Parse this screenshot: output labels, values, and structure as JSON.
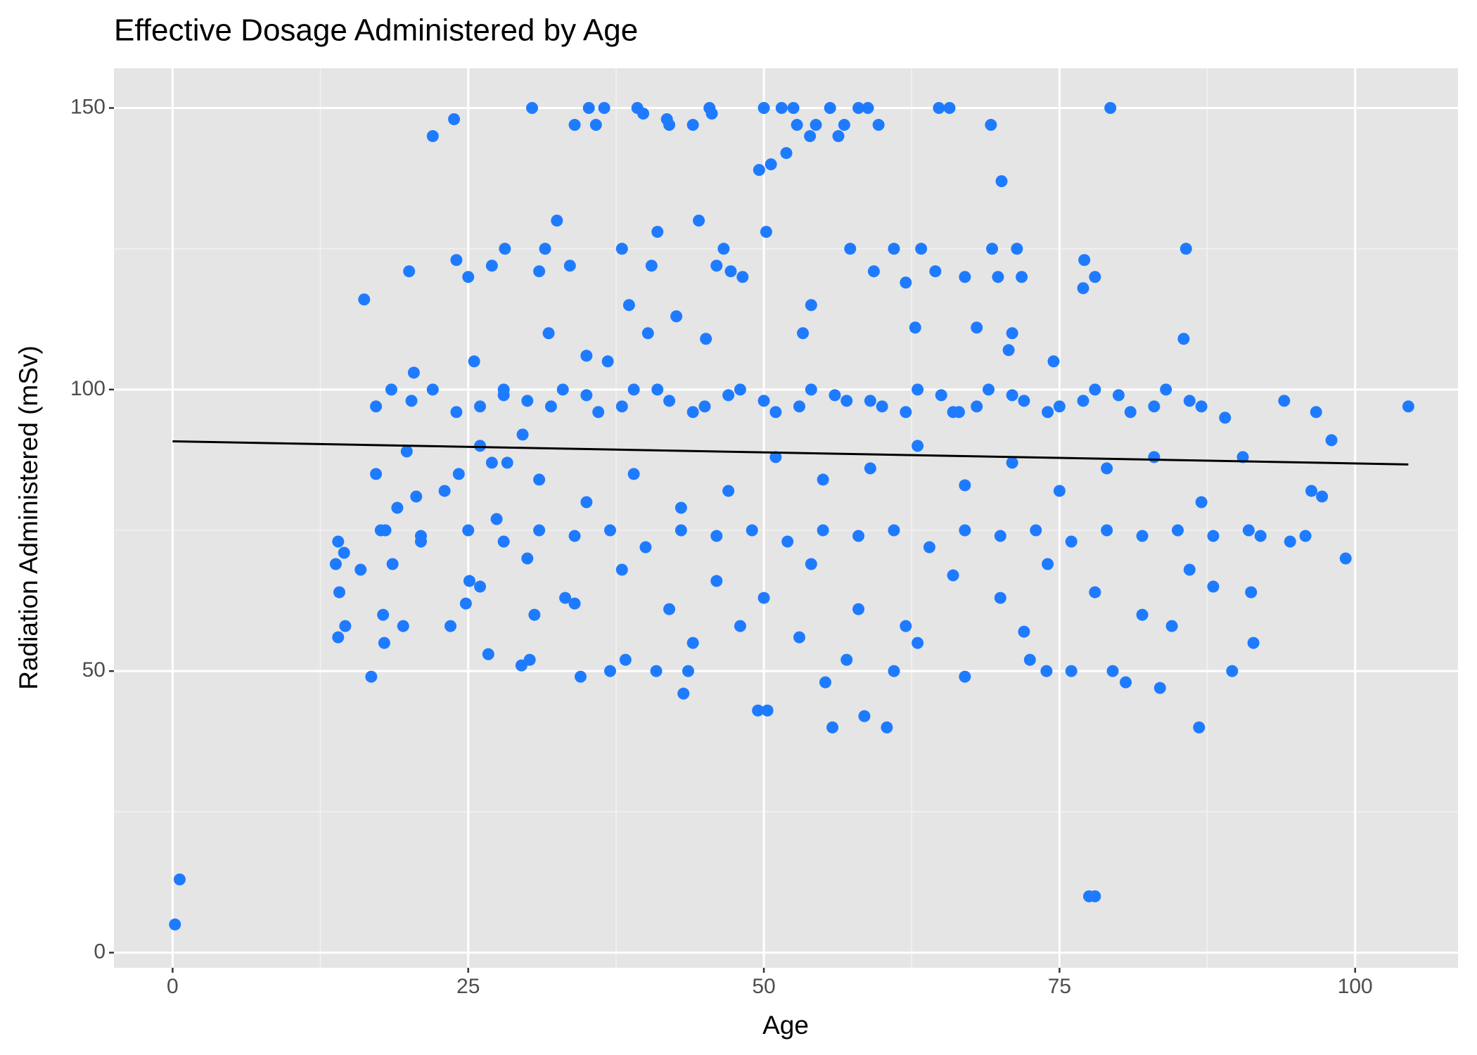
{
  "chart_data": {
    "type": "scatter",
    "title": "Effective Dosage Administered by Age",
    "x_label": "Age",
    "y_label": "Radiation Administered (mSv)",
    "xlim": [
      -4.96,
      108.7
    ],
    "ylim": [
      -2.69,
      157.06
    ],
    "xticks": [
      0,
      25,
      50,
      75,
      100
    ],
    "yticks": [
      0,
      50,
      100,
      150
    ],
    "minor_xticks": [
      12.5,
      37.5,
      62.5,
      87.5
    ],
    "minor_yticks": [
      25,
      75,
      125
    ],
    "grid": true,
    "series": [
      {
        "color": "#1e7bff",
        "x": [
          0.2,
          0.6,
          13.8,
          14,
          14.1,
          14,
          14.6,
          14.5,
          15.9,
          16.2,
          16.8,
          17.2,
          17.2,
          17.6,
          17.8,
          17.9,
          18.5,
          18.6,
          19,
          19.5,
          19.8,
          20,
          20.2,
          20.4,
          20.6,
          21,
          22,
          23.5,
          23.8,
          24,
          24.2,
          24.8,
          25,
          25.1,
          25.5,
          26,
          26.7,
          27,
          27.4,
          28,
          28.1,
          28.3,
          29.5,
          29.6,
          30.2,
          30.4,
          30.6,
          31,
          31.5,
          31.8,
          32.5,
          33.2,
          33.6,
          34,
          34.5,
          35,
          35.2,
          35.8,
          36.5,
          36.8,
          37,
          38,
          38.3,
          38.6,
          39.3,
          39.8,
          40.2,
          40.5,
          40.9,
          41,
          41.8,
          42,
          42.6,
          43.2,
          43.6,
          44,
          44.5,
          45.1,
          45.4,
          45.6,
          46,
          46.6,
          47.2,
          48.2,
          49.5,
          49.6,
          50,
          50.2,
          50.3,
          50.6,
          51.5,
          51.9,
          52.5,
          52.8,
          53.3,
          53.9,
          54,
          54.4,
          55.2,
          55.6,
          55.8,
          56.3,
          56.8,
          57.3,
          58,
          58.5,
          58.8,
          59.3,
          59.7,
          60.4,
          61,
          62,
          62.8,
          63.3,
          64.5,
          64.8,
          65.7,
          66.5,
          67,
          68,
          69.2,
          69.3,
          69.8,
          70.1,
          70.7,
          71,
          71.4,
          71.8,
          72.5,
          73.9,
          74.5,
          76,
          77,
          77.1,
          77.5,
          78,
          78,
          79.3,
          79.5,
          80.6,
          83.5,
          84.5,
          85.5,
          85.7,
          86.8,
          88,
          89.6,
          91.2,
          91.4,
          94.5,
          95.8,
          96.3,
          96.7,
          97.2,
          98,
          99.2,
          104.5,
          94,
          92,
          90.5,
          22,
          26,
          30,
          33,
          36,
          39,
          42,
          45,
          48,
          51,
          54,
          57,
          60,
          63,
          66,
          69,
          72,
          75,
          78,
          81,
          84,
          87,
          89,
          24,
          28,
          32,
          35,
          38,
          41,
          44,
          47,
          50,
          53,
          56,
          59,
          62,
          65,
          68,
          71,
          74,
          77,
          80,
          83,
          86,
          18,
          21,
          25,
          28,
          31,
          34,
          37,
          40,
          43,
          46,
          49,
          52,
          55,
          58,
          61,
          64,
          67,
          70,
          73,
          76,
          79,
          82,
          85,
          88,
          91,
          23,
          27,
          31,
          35,
          39,
          43,
          47,
          51,
          55,
          59,
          63,
          67,
          71,
          75,
          79,
          83,
          87,
          26,
          30,
          34,
          38,
          42,
          46,
          50,
          54,
          58,
          62,
          66,
          70,
          74,
          78,
          82,
          86,
          44,
          48,
          53,
          57,
          61,
          63,
          67,
          72
        ],
        "values": [
          5,
          13,
          69,
          73,
          64,
          56,
          58,
          71,
          68,
          116,
          49,
          97,
          85,
          75,
          60,
          55,
          100,
          69,
          79,
          58,
          89,
          121,
          98,
          103,
          81,
          73,
          145,
          58,
          148,
          123,
          85,
          62,
          120,
          66,
          105,
          90,
          53,
          122,
          77,
          100,
          125,
          87,
          51,
          92,
          52,
          150,
          60,
          121,
          125,
          110,
          130,
          63,
          122,
          147,
          49,
          106,
          150,
          147,
          150,
          105,
          50,
          125,
          52,
          115,
          150,
          149,
          110,
          122,
          50,
          128,
          148,
          147,
          113,
          46,
          50,
          147,
          130,
          109,
          150,
          149,
          122,
          125,
          121,
          120,
          43,
          139,
          150,
          128,
          43,
          140,
          150,
          142,
          150,
          147,
          110,
          145,
          115,
          147,
          48,
          150,
          40,
          145,
          147,
          125,
          150,
          42,
          150,
          121,
          147,
          40,
          125,
          119,
          111,
          125,
          121,
          150,
          150,
          96,
          120,
          111,
          147,
          125,
          120,
          137,
          107,
          110,
          125,
          120,
          52,
          50,
          105,
          50,
          118,
          123,
          10,
          10,
          120,
          150,
          50,
          48,
          47,
          58,
          109,
          125,
          40,
          65,
          50,
          64,
          55,
          73,
          74,
          82,
          96,
          81,
          91,
          70,
          97,
          98,
          74,
          88,
          100,
          97,
          98,
          100,
          96,
          100,
          98,
          97,
          100,
          96,
          100,
          98,
          97,
          100,
          96,
          100,
          98,
          97,
          100,
          96,
          100,
          97,
          95,
          96,
          99,
          97,
          99,
          97,
          100,
          96,
          99,
          98,
          97,
          99,
          98,
          96,
          99,
          97,
          99,
          96,
          98,
          99,
          97,
          98,
          75,
          74,
          75,
          73,
          75,
          74,
          75,
          72,
          75,
          74,
          75,
          73,
          75,
          74,
          75,
          72,
          75,
          74,
          75,
          73,
          75,
          74,
          75,
          74,
          75,
          82,
          87,
          84,
          80,
          85,
          79,
          82,
          88,
          84,
          86,
          90,
          83,
          87,
          82,
          86,
          88,
          80,
          65,
          70,
          62,
          68,
          61,
          66,
          63,
          69,
          61,
          58,
          67,
          63,
          69,
          64,
          60,
          68,
          55,
          58,
          56,
          52,
          50,
          55,
          49,
          57
        ]
      }
    ],
    "trend": {
      "color": "#000000",
      "x": [
        0,
        104.5
      ],
      "values": [
        90.8,
        86.7
      ]
    }
  }
}
